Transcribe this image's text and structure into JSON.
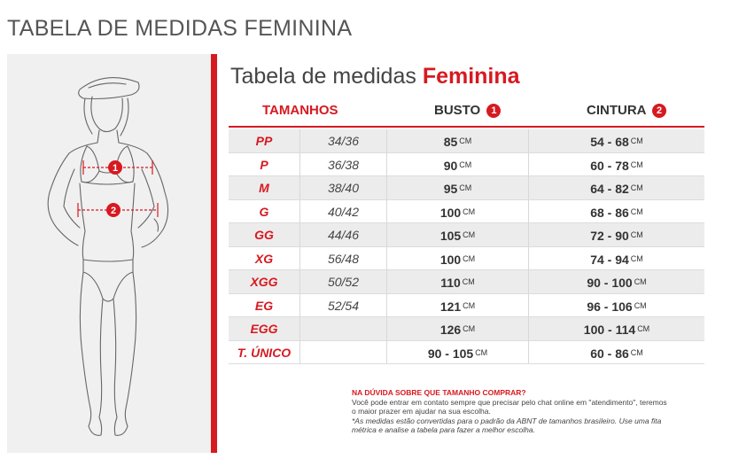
{
  "page": {
    "main_title": "TABELA DE MEDIDAS FEMININA",
    "table_title_plain": "Tabela de medidas ",
    "table_title_accent": "Feminina"
  },
  "colors": {
    "accent": "#d71920",
    "panel": "#f0f0f0",
    "alt_row": "#ececec"
  },
  "figure": {
    "marker_1": "1",
    "marker_2": "2"
  },
  "headers": {
    "tamanhos": "TAMANHOS",
    "busto": "BUSTO",
    "busto_num": "1",
    "cintura": "CINTURA",
    "cintura_num": "2"
  },
  "rows": [
    {
      "size": "PP",
      "br": "34/36",
      "busto": "85",
      "busto_unit": "CM",
      "cintura": "54 - 68",
      "cintura_unit": "CM"
    },
    {
      "size": "P",
      "br": "36/38",
      "busto": "90",
      "busto_unit": "CM",
      "cintura": "60 - 78",
      "cintura_unit": "CM"
    },
    {
      "size": "M",
      "br": "38/40",
      "busto": "95",
      "busto_unit": "CM",
      "cintura": "64 - 82",
      "cintura_unit": "CM"
    },
    {
      "size": "G",
      "br": "40/42",
      "busto": "100",
      "busto_unit": "CM",
      "cintura": "68 - 86",
      "cintura_unit": "CM"
    },
    {
      "size": "GG",
      "br": "44/46",
      "busto": "105",
      "busto_unit": "CM",
      "cintura": "72 - 90",
      "cintura_unit": "CM"
    },
    {
      "size": "XG",
      "br": "56/48",
      "busto": "100",
      "busto_unit": "CM",
      "cintura": "74 - 94",
      "cintura_unit": "CM"
    },
    {
      "size": "XGG",
      "br": "50/52",
      "busto": "110",
      "busto_unit": "CM",
      "cintura": "90 - 100",
      "cintura_unit": "CM"
    },
    {
      "size": "EG",
      "br": "52/54",
      "busto": "121",
      "busto_unit": "CM",
      "cintura": "96 - 106",
      "cintura_unit": "CM"
    },
    {
      "size": "EGG",
      "br": "",
      "busto": "126",
      "busto_unit": "CM",
      "cintura": "100 - 114",
      "cintura_unit": "CM"
    },
    {
      "size": "T. ÚNICO",
      "br": "",
      "busto": "90 - 105",
      "busto_unit": "CM",
      "cintura": "60 - 86",
      "cintura_unit": "CM"
    }
  ],
  "notes": {
    "title": "NA DÚVIDA SOBRE QUE TAMANHO COMPRAR?",
    "line1": "Você pode entrar em contato sempre que precisar pelo chat online em \"atendimento\", teremos",
    "line2": "o maior prazer em ajudar na sua escolha.",
    "line3": "*As medidas estão convertidas para o padrão da ABNT de tamanhos brasileiro. Use uma fita",
    "line4": "métrica e analise a tabela para fazer a melhor escolha."
  }
}
